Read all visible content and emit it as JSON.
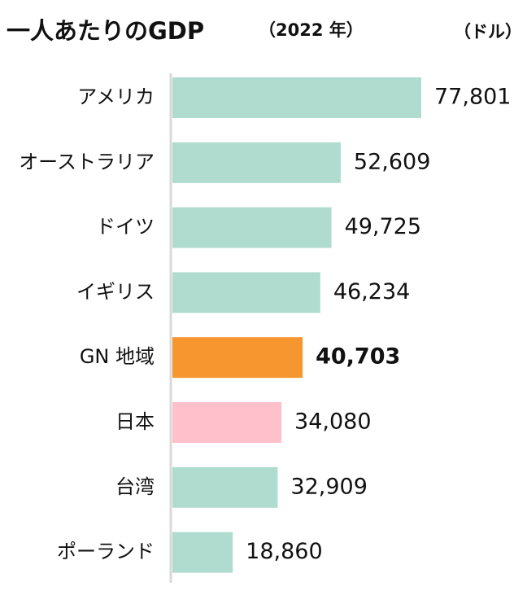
{
  "chart_data": {
    "type": "bar",
    "orientation": "horizontal",
    "title": "一人あたりのGDP",
    "subtitle": "（2022 年）",
    "unit": "（ドル）",
    "categories": [
      "アメリカ",
      "オーストラリア",
      "ドイツ",
      "イギリス",
      "GN 地域",
      "日本",
      "台湾",
      "ポーランド"
    ],
    "values": [
      77801,
      52609,
      49725,
      46234,
      40703,
      34080,
      32909,
      18860
    ],
    "value_labels": [
      "77,801",
      "52,609",
      "49,725",
      "46,234",
      "40,703",
      "34,080",
      "32,909",
      "18,860"
    ],
    "colors": [
      "#b0dccf",
      "#b0dccf",
      "#b0dccf",
      "#b0dccf",
      "#f7962e",
      "#ffc0cc",
      "#b0dccf",
      "#b0dccf"
    ],
    "highlight_index": 4,
    "highlight_color": "#f7962e"
  }
}
